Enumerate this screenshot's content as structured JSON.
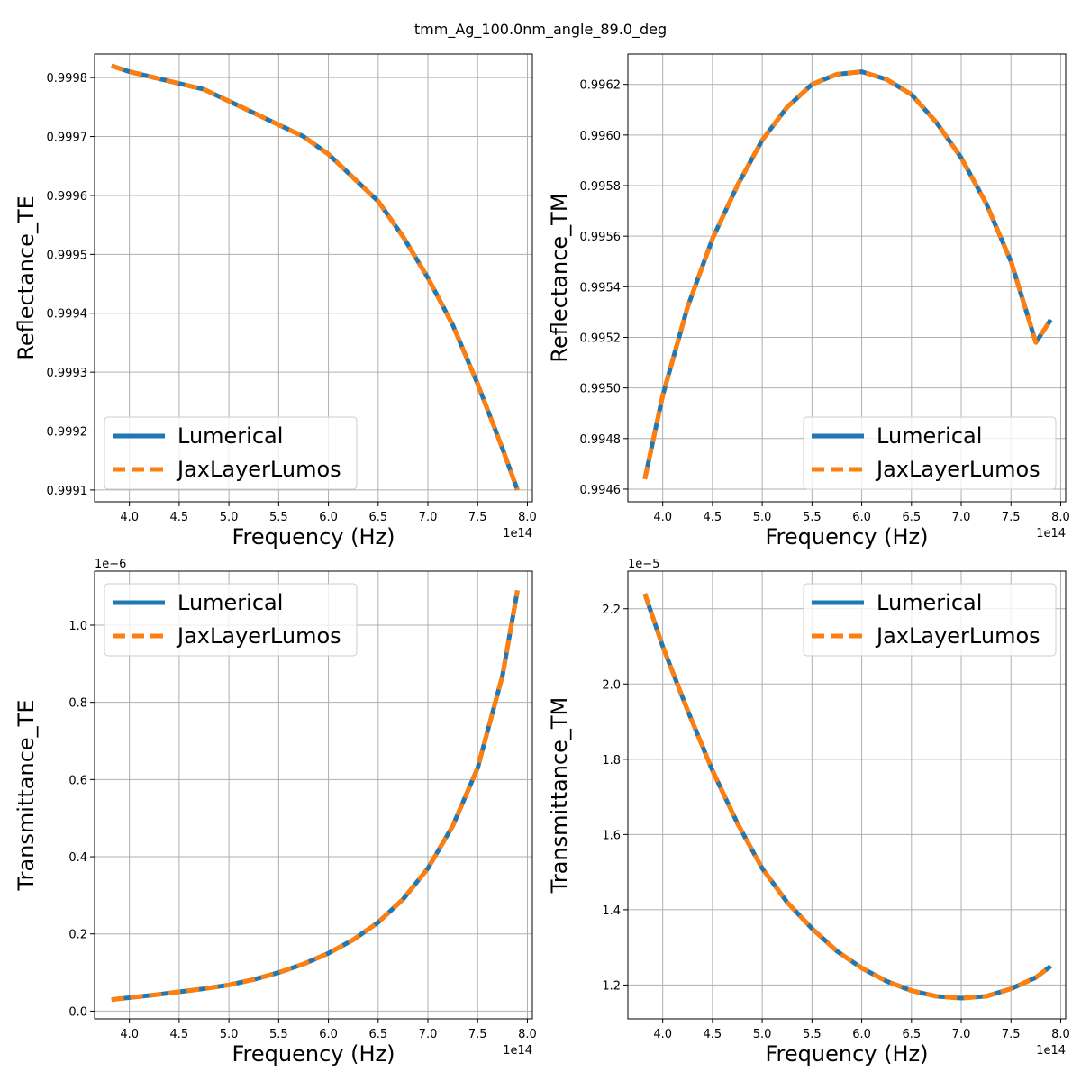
{
  "figure": {
    "title": "tmm_Ag_100.0nm_angle_89.0_deg",
    "colors": {
      "lumerical": "#1f77b4",
      "jax": "#ff7f0e",
      "grid": "#b0b0b0"
    }
  },
  "chart_data": [
    {
      "type": "line",
      "xlabel": "Frequency (Hz)",
      "ylabel": "Reflectance_TE",
      "x_offset_label": "1e14",
      "y_offset_label": "",
      "legend_position": "lower-left",
      "grid": true,
      "xlim": [
        3.65,
        8.05
      ],
      "ylim": [
        0.99908,
        0.99984
      ],
      "xticks": [
        4.0,
        4.5,
        5.0,
        5.5,
        6.0,
        6.5,
        7.0,
        7.5,
        8.0
      ],
      "xtick_labels": [
        "4.0",
        "4.5",
        "5.0",
        "5.5",
        "6.0",
        "6.5",
        "7.0",
        "7.5",
        "8.0"
      ],
      "yticks": [
        0.9991,
        0.9992,
        0.9993,
        0.9994,
        0.9995,
        0.9996,
        0.9997,
        0.9998
      ],
      "ytick_labels": [
        "0.9991",
        "0.9992",
        "0.9993",
        "0.9994",
        "0.9995",
        "0.9996",
        "0.9997",
        "0.9998"
      ],
      "x": [
        3.82,
        4.0,
        4.25,
        4.5,
        4.75,
        5.0,
        5.25,
        5.5,
        5.75,
        6.0,
        6.25,
        6.5,
        6.75,
        7.0,
        7.25,
        7.5,
        7.75,
        7.9
      ],
      "series": [
        {
          "name": "Lumerical",
          "style": "solid",
          "values": [
            0.99982,
            0.99981,
            0.9998,
            0.99979,
            0.99978,
            0.99976,
            0.99974,
            0.99972,
            0.9997,
            0.99967,
            0.99963,
            0.99959,
            0.99953,
            0.99946,
            0.99938,
            0.99928,
            0.99917,
            0.9991
          ]
        },
        {
          "name": "JaxLayerLumos",
          "style": "dashed",
          "values": [
            0.99982,
            0.99981,
            0.9998,
            0.99979,
            0.99978,
            0.99976,
            0.99974,
            0.99972,
            0.9997,
            0.99967,
            0.99963,
            0.99959,
            0.99953,
            0.99946,
            0.99938,
            0.99928,
            0.99917,
            0.9991
          ]
        }
      ]
    },
    {
      "type": "line",
      "xlabel": "Frequency (Hz)",
      "ylabel": "Reflectance_TM",
      "x_offset_label": "1e14",
      "y_offset_label": "",
      "legend_position": "lower-right",
      "grid": true,
      "xlim": [
        3.65,
        8.05
      ],
      "ylim": [
        0.99455,
        0.99632
      ],
      "xticks": [
        4.0,
        4.5,
        5.0,
        5.5,
        6.0,
        6.5,
        7.0,
        7.5,
        8.0
      ],
      "xtick_labels": [
        "4.0",
        "4.5",
        "5.0",
        "5.5",
        "6.0",
        "6.5",
        "7.0",
        "7.5",
        "8.0"
      ],
      "yticks": [
        0.9946,
        0.9948,
        0.995,
        0.9952,
        0.9954,
        0.9956,
        0.9958,
        0.996,
        0.9962
      ],
      "ytick_labels": [
        "0.9946",
        "0.9948",
        "0.9950",
        "0.9952",
        "0.9954",
        "0.9956",
        "0.9958",
        "0.9960",
        "0.9962"
      ],
      "x": [
        3.82,
        4.0,
        4.25,
        4.5,
        4.75,
        5.0,
        5.25,
        5.5,
        5.75,
        6.0,
        6.25,
        6.5,
        6.75,
        7.0,
        7.25,
        7.5,
        7.75,
        7.9
      ],
      "series": [
        {
          "name": "Lumerical",
          "style": "solid",
          "values": [
            0.99464,
            0.99497,
            0.99532,
            0.99559,
            0.9958,
            0.99598,
            0.99611,
            0.9962,
            0.99624,
            0.99625,
            0.99622,
            0.99616,
            0.99605,
            0.99591,
            0.99573,
            0.9955,
            0.99518,
            0.99527
          ]
        },
        {
          "name": "JaxLayerLumos",
          "style": "dashed",
          "values": [
            0.99464,
            0.99497,
            0.99532,
            0.99559,
            0.9958,
            0.99598,
            0.99611,
            0.9962,
            0.99624,
            0.99625,
            0.99622,
            0.99616,
            0.99605,
            0.99591,
            0.99573,
            0.9955,
            0.99518,
            0.99527
          ]
        }
      ]
    },
    {
      "type": "line",
      "xlabel": "Frequency (Hz)",
      "ylabel": "Transmittance_TE",
      "x_offset_label": "1e14",
      "y_offset_label": "1e−6",
      "legend_position": "upper-left",
      "grid": true,
      "xlim": [
        3.65,
        8.05
      ],
      "ylim": [
        -0.02,
        1.14
      ],
      "xticks": [
        4.0,
        4.5,
        5.0,
        5.5,
        6.0,
        6.5,
        7.0,
        7.5,
        8.0
      ],
      "xtick_labels": [
        "4.0",
        "4.5",
        "5.0",
        "5.5",
        "6.0",
        "6.5",
        "7.0",
        "7.5",
        "8.0"
      ],
      "yticks": [
        0.0,
        0.2,
        0.4,
        0.6,
        0.8,
        1.0
      ],
      "ytick_labels": [
        "0.0",
        "0.2",
        "0.4",
        "0.6",
        "0.8",
        "1.0"
      ],
      "x": [
        3.82,
        4.0,
        4.25,
        4.5,
        4.75,
        5.0,
        5.25,
        5.5,
        5.75,
        6.0,
        6.25,
        6.5,
        6.75,
        7.0,
        7.25,
        7.5,
        7.75,
        7.9
      ],
      "series": [
        {
          "name": "Lumerical",
          "style": "solid",
          "values": [
            0.03,
            0.035,
            0.042,
            0.05,
            0.058,
            0.068,
            0.082,
            0.1,
            0.122,
            0.15,
            0.185,
            0.23,
            0.29,
            0.37,
            0.48,
            0.63,
            0.87,
            1.09
          ]
        },
        {
          "name": "JaxLayerLumos",
          "style": "dashed",
          "values": [
            0.03,
            0.035,
            0.042,
            0.05,
            0.058,
            0.068,
            0.082,
            0.1,
            0.122,
            0.15,
            0.185,
            0.23,
            0.29,
            0.37,
            0.48,
            0.63,
            0.87,
            1.09
          ]
        }
      ]
    },
    {
      "type": "line",
      "xlabel": "Frequency (Hz)",
      "ylabel": "Transmittance_TM",
      "x_offset_label": "1e14",
      "y_offset_label": "1e−5",
      "legend_position": "upper-right",
      "grid": true,
      "xlim": [
        3.65,
        8.05
      ],
      "ylim": [
        1.11,
        2.3
      ],
      "xticks": [
        4.0,
        4.5,
        5.0,
        5.5,
        6.0,
        6.5,
        7.0,
        7.5,
        8.0
      ],
      "xtick_labels": [
        "4.0",
        "4.5",
        "5.0",
        "5.5",
        "6.0",
        "6.5",
        "7.0",
        "7.5",
        "8.0"
      ],
      "yticks": [
        1.2,
        1.4,
        1.6,
        1.8,
        2.0,
        2.2
      ],
      "ytick_labels": [
        "1.2",
        "1.4",
        "1.6",
        "1.8",
        "2.0",
        "2.2"
      ],
      "x": [
        3.82,
        4.0,
        4.25,
        4.5,
        4.75,
        5.0,
        5.25,
        5.5,
        5.75,
        6.0,
        6.25,
        6.5,
        6.75,
        7.0,
        7.25,
        7.5,
        7.75,
        7.9
      ],
      "series": [
        {
          "name": "Lumerical",
          "style": "solid",
          "values": [
            2.24,
            2.1,
            1.93,
            1.77,
            1.63,
            1.51,
            1.42,
            1.35,
            1.29,
            1.245,
            1.21,
            1.185,
            1.17,
            1.165,
            1.17,
            1.19,
            1.22,
            1.25
          ]
        },
        {
          "name": "JaxLayerLumos",
          "style": "dashed",
          "values": [
            2.24,
            2.1,
            1.93,
            1.77,
            1.63,
            1.51,
            1.42,
            1.35,
            1.29,
            1.245,
            1.21,
            1.185,
            1.17,
            1.165,
            1.17,
            1.19,
            1.22,
            1.25
          ]
        }
      ]
    }
  ]
}
